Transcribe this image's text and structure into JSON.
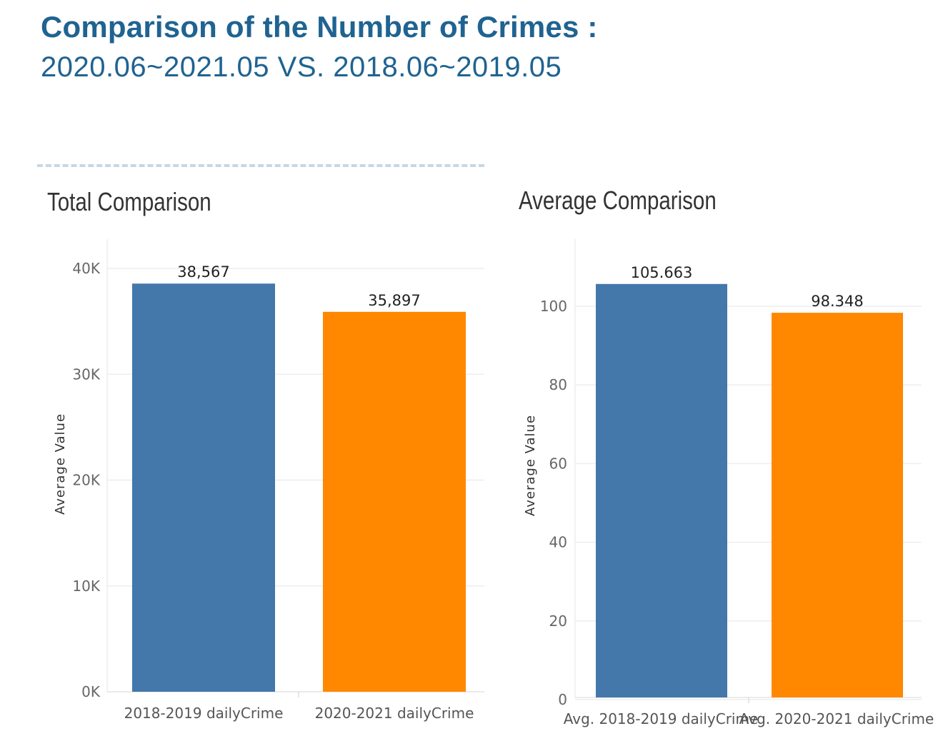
{
  "header": {
    "title": "Comparison of the Number of Crimes :",
    "subtitle": "2020.06~2021.05 VS. 2018.06~2019.05"
  },
  "colors": {
    "title": "#1f6391",
    "series_2018": "#4477aa",
    "series_2020": "#ff8800",
    "grid": "#eeeeee"
  },
  "chart_data": [
    {
      "type": "bar",
      "title": "Total Comparison",
      "ylabel": "Average Value",
      "xlabel": "",
      "categories": [
        "2018-2019 dailyCrime",
        "2020-2021 dailyCrime"
      ],
      "values": [
        38567,
        35897
      ],
      "data_labels": [
        "38,567",
        "35,897"
      ],
      "ylim": [
        0,
        40000
      ],
      "yticks": [
        0,
        10000,
        20000,
        30000,
        40000
      ],
      "ytick_labels": [
        "0K",
        "10K",
        "20K",
        "30K",
        "40K"
      ],
      "grid": true,
      "legend": "none"
    },
    {
      "type": "bar",
      "title": "Average Comparison",
      "ylabel": "Average Value",
      "xlabel": "",
      "categories": [
        "Avg. 2018-2019 dailyCrime",
        "Avg. 2020-2021 dailyCrime"
      ],
      "values": [
        105.663,
        98.348
      ],
      "data_labels": [
        "105.663",
        "98.348"
      ],
      "ylim": [
        0,
        100
      ],
      "yticks": [
        0,
        20,
        40,
        60,
        80,
        100
      ],
      "ytick_labels": [
        "0",
        "20",
        "40",
        "60",
        "80",
        "100"
      ],
      "grid": true,
      "legend": "none"
    }
  ]
}
